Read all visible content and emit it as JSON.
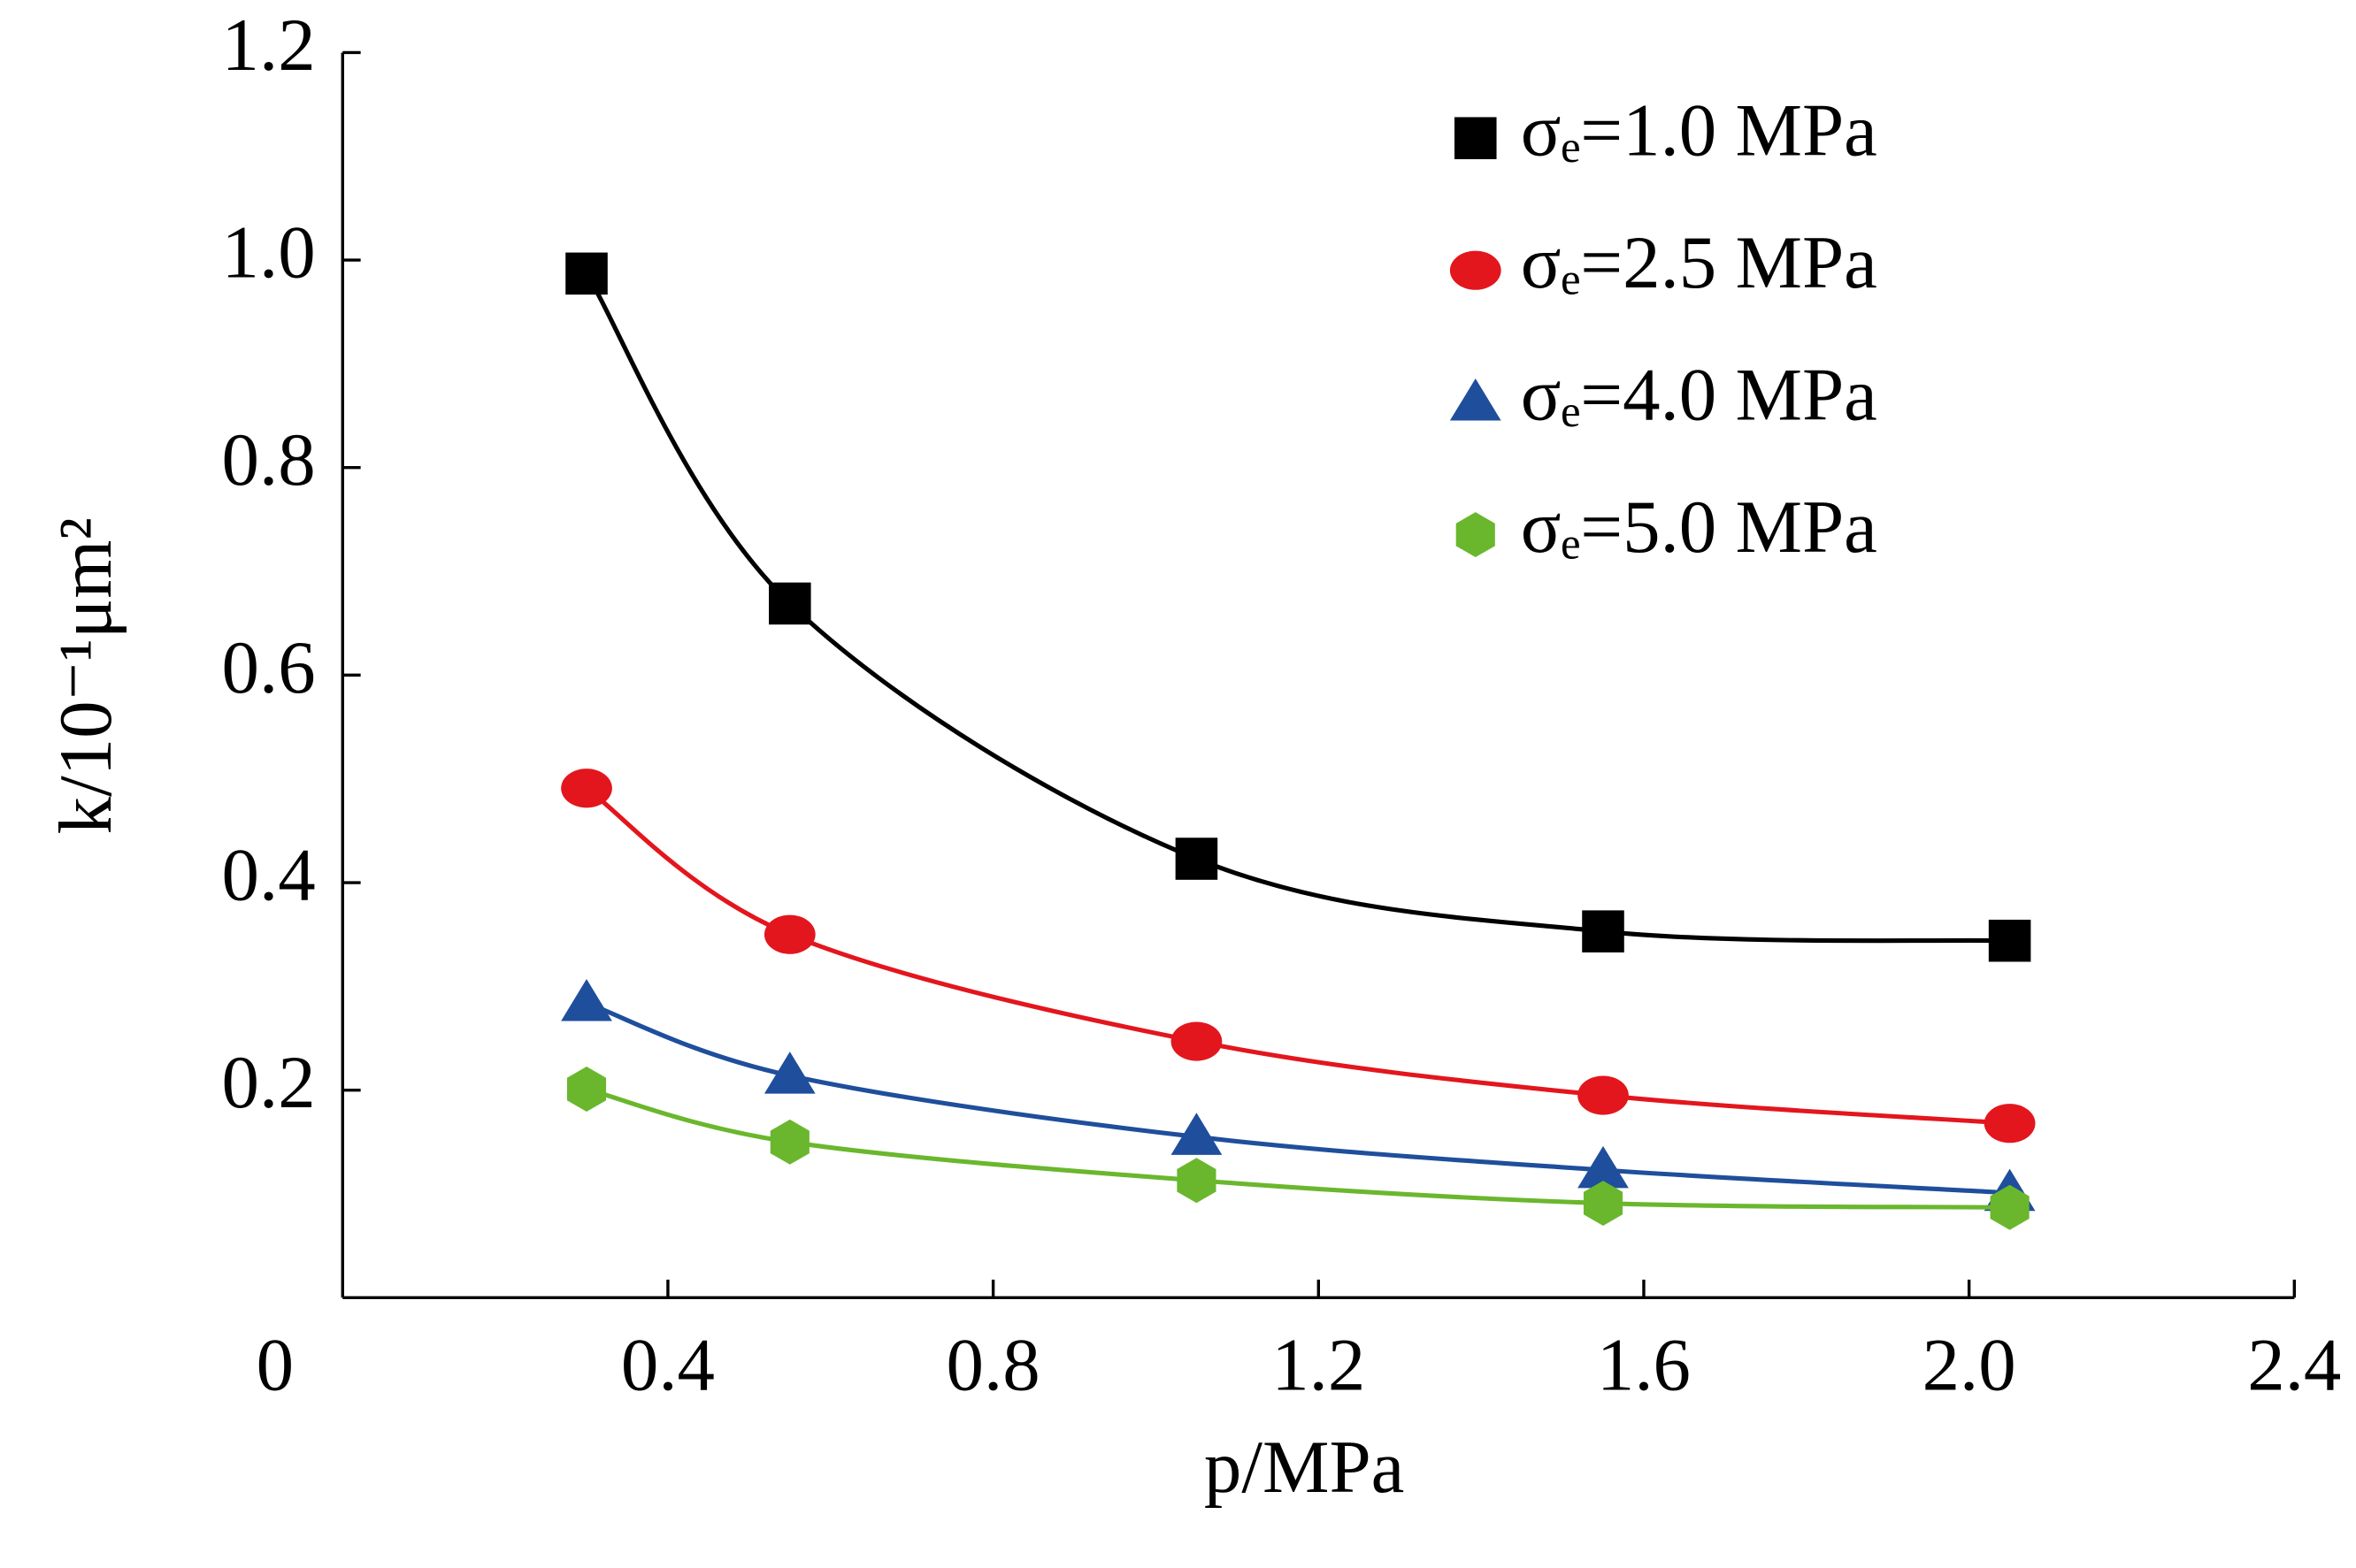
{
  "chart_data": {
    "type": "scatter",
    "xlabel": "p/MPa",
    "ylabel": "k/10⁻¹μm²",
    "xlim": [
      0,
      2.4
    ],
    "ylim": [
      0,
      1.2
    ],
    "xticks": [
      0,
      0.4,
      0.8,
      1.2,
      1.6,
      {
        "value": 2,
        "label": "2.0"
      },
      2.4
    ],
    "yticks": [
      0.2,
      0.4,
      0.6,
      0.8,
      {
        "value": 1,
        "label": "1.0"
      },
      1.2
    ],
    "legend": "upper right",
    "series": [
      {
        "name": "σₑ=1.0 MPa",
        "color": "#000000",
        "marker": "square",
        "x": [
          0.3,
          0.55,
          1.05,
          1.55,
          2.05
        ],
        "values": [
          0.987,
          0.669,
          0.423,
          0.353,
          0.344
        ]
      },
      {
        "name": "σₑ=2.5 MPa",
        "color": "#e3161d",
        "marker": "circle",
        "x": [
          0.3,
          0.55,
          1.05,
          1.55,
          2.05
        ],
        "values": [
          0.491,
          0.35,
          0.247,
          0.195,
          0.168
        ]
      },
      {
        "name": "σₑ=4.0 MPa",
        "color": "#1f4e9c",
        "marker": "triangle",
        "x": [
          0.3,
          0.55,
          1.05,
          1.55,
          2.05
        ],
        "values": [
          0.284,
          0.214,
          0.155,
          0.123,
          0.101
        ]
      },
      {
        "name": "σₑ=5.0 MPa",
        "color": "#6ab72d",
        "marker": "hexagon",
        "x": [
          0.3,
          0.55,
          1.05,
          1.55,
          2.05
        ],
        "values": [
          0.201,
          0.15,
          0.113,
          0.091,
          0.087
        ]
      }
    ]
  }
}
